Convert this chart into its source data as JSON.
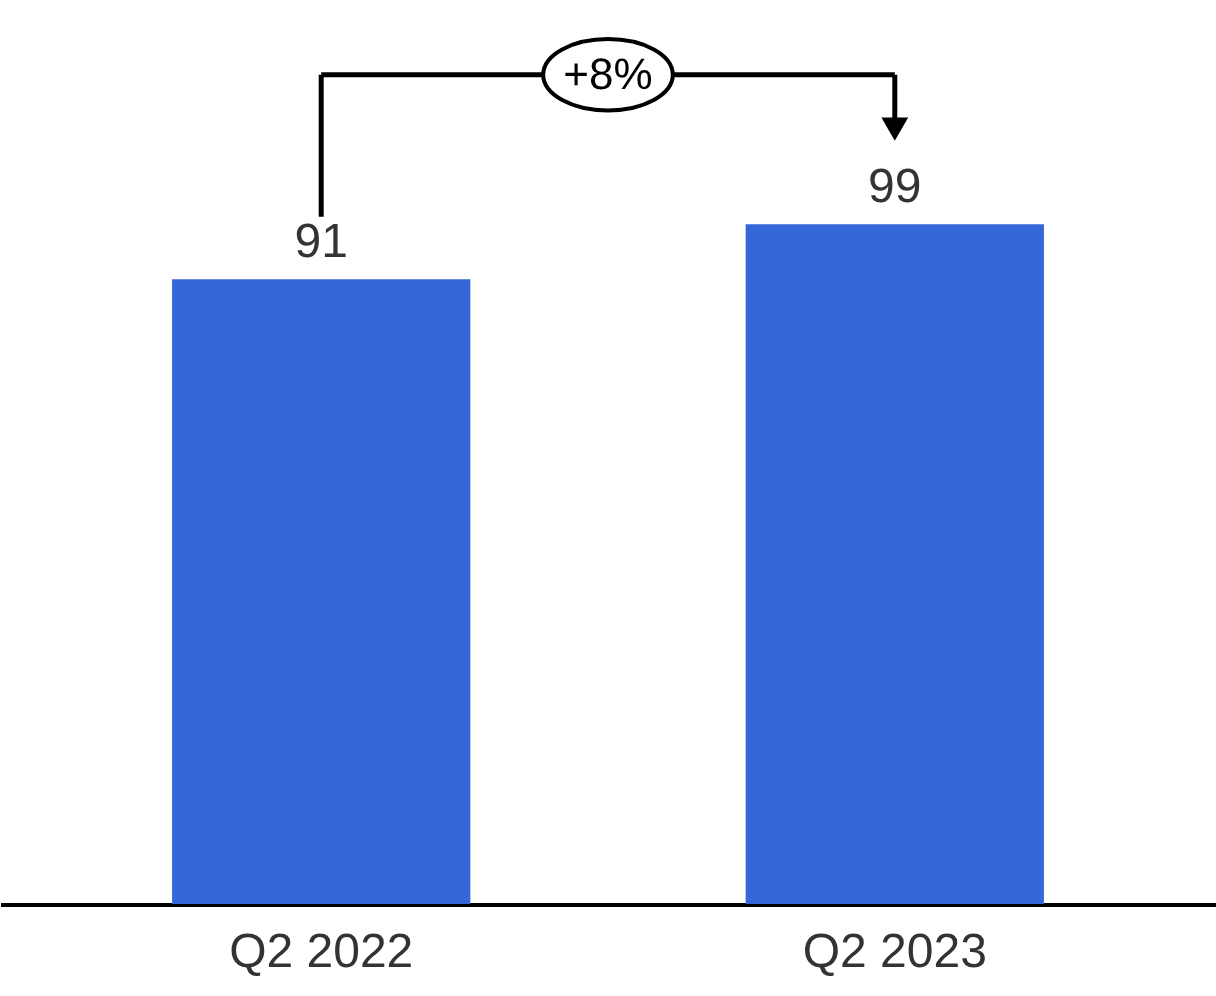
{
  "chart_data": {
    "type": "bar",
    "categories": [
      "Q2 2022",
      "Q2 2023"
    ],
    "values": [
      91,
      99
    ],
    "color": "#3567d9",
    "data_labels": true,
    "grid": false,
    "annotations": [
      "+8%"
    ]
  }
}
